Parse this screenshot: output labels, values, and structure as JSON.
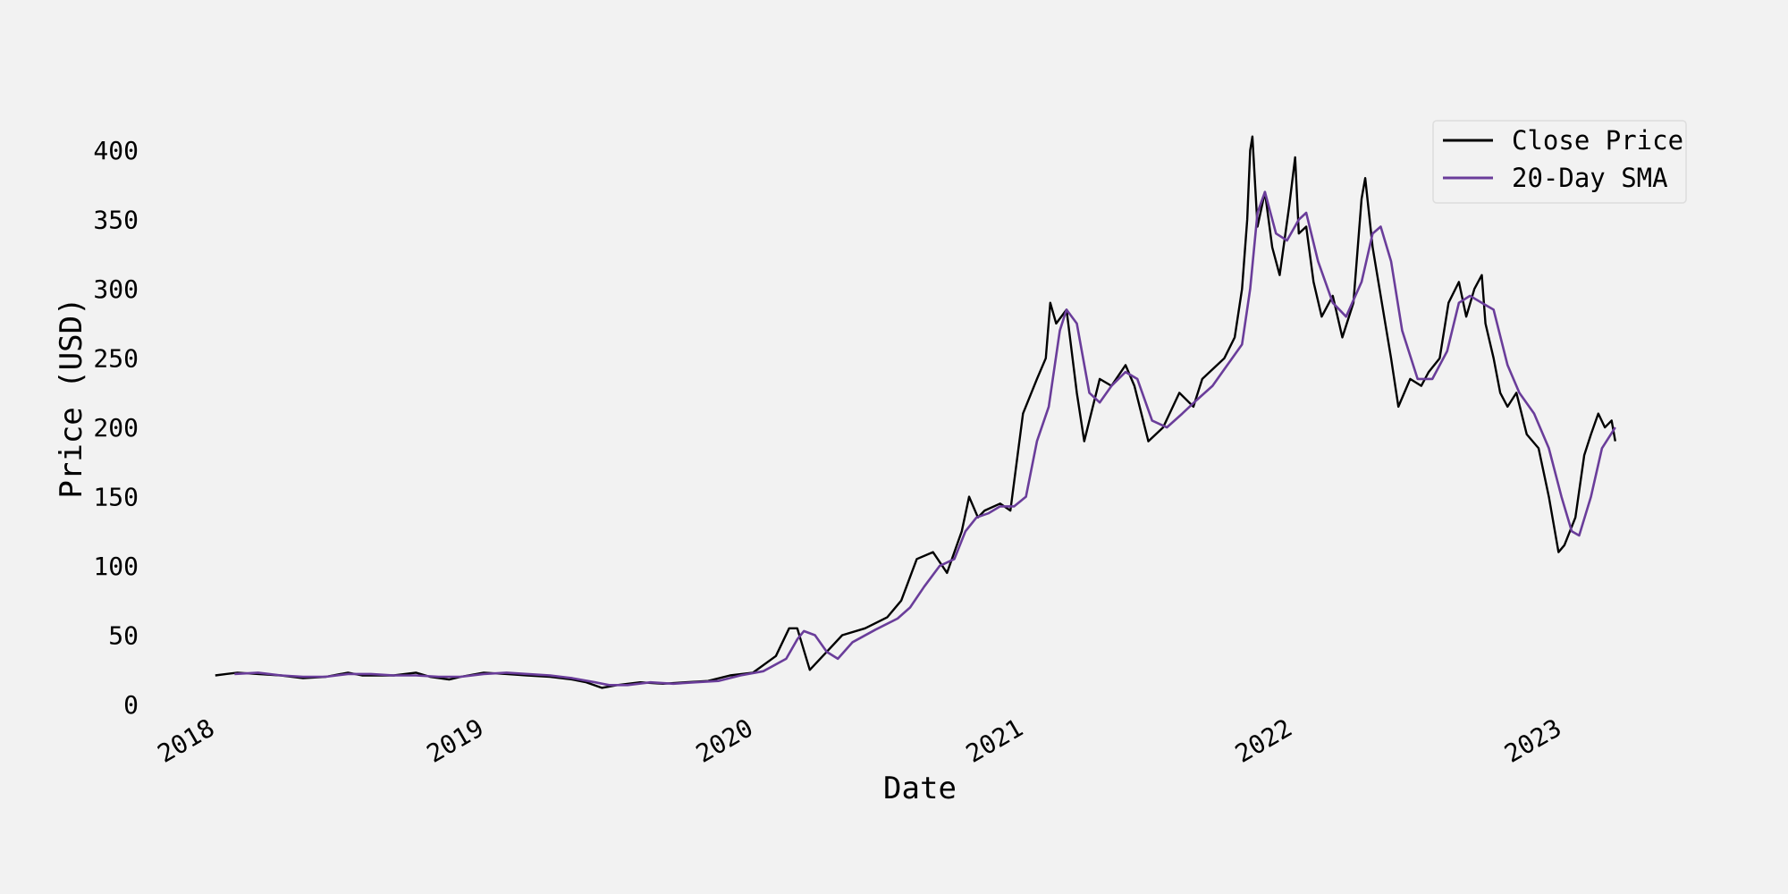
{
  "chart_data": {
    "type": "line",
    "title": "",
    "xlabel": "Date",
    "ylabel": "Price (USD)",
    "x_ticks": [
      "2018",
      "2019",
      "2020",
      "2021",
      "2022",
      "2023"
    ],
    "y_ticks": [
      0,
      50,
      100,
      150,
      200,
      250,
      300,
      350,
      400
    ],
    "xlim": [
      "2018-01-01",
      "2023-03-31"
    ],
    "ylim": [
      0,
      415
    ],
    "grid": false,
    "legend_position": "top-right",
    "series": [
      {
        "name": "Close Price",
        "color": "#000000",
        "points": [
          [
            "2018-01-02",
            21
          ],
          [
            "2018-02-01",
            23
          ],
          [
            "2018-03-01",
            22
          ],
          [
            "2018-04-01",
            21
          ],
          [
            "2018-05-01",
            19
          ],
          [
            "2018-06-01",
            20
          ],
          [
            "2018-07-01",
            23
          ],
          [
            "2018-07-20",
            21
          ],
          [
            "2018-08-01",
            21
          ],
          [
            "2018-09-01",
            21
          ],
          [
            "2018-10-01",
            23
          ],
          [
            "2018-10-20",
            20
          ],
          [
            "2018-11-15",
            18
          ],
          [
            "2018-12-01",
            20
          ],
          [
            "2019-01-01",
            23
          ],
          [
            "2019-02-01",
            22
          ],
          [
            "2019-03-01",
            21
          ],
          [
            "2019-04-01",
            20
          ],
          [
            "2019-05-01",
            18
          ],
          [
            "2019-05-20",
            16
          ],
          [
            "2019-06-10",
            12
          ],
          [
            "2019-07-01",
            14
          ],
          [
            "2019-08-01",
            16
          ],
          [
            "2019-09-01",
            15
          ],
          [
            "2019-10-01",
            16
          ],
          [
            "2019-11-01",
            17
          ],
          [
            "2019-12-01",
            21
          ],
          [
            "2020-01-01",
            23
          ],
          [
            "2020-02-01",
            35
          ],
          [
            "2020-02-19",
            55
          ],
          [
            "2020-03-01",
            55
          ],
          [
            "2020-03-18",
            25
          ],
          [
            "2020-04-10",
            38
          ],
          [
            "2020-05-01",
            50
          ],
          [
            "2020-06-01",
            55
          ],
          [
            "2020-07-01",
            63
          ],
          [
            "2020-07-20",
            75
          ],
          [
            "2020-08-10",
            105
          ],
          [
            "2020-09-01",
            110
          ],
          [
            "2020-09-20",
            95
          ],
          [
            "2020-10-10",
            125
          ],
          [
            "2020-10-20",
            150
          ],
          [
            "2020-11-01",
            135
          ],
          [
            "2020-11-10",
            140
          ],
          [
            "2020-12-01",
            145
          ],
          [
            "2020-12-15",
            140
          ],
          [
            "2021-01-01",
            210
          ],
          [
            "2021-01-20",
            235
          ],
          [
            "2021-02-01",
            250
          ],
          [
            "2021-02-07",
            290
          ],
          [
            "2021-02-15",
            275
          ],
          [
            "2021-03-01",
            285
          ],
          [
            "2021-03-15",
            225
          ],
          [
            "2021-03-25",
            190
          ],
          [
            "2021-04-15",
            235
          ],
          [
            "2021-05-01",
            230
          ],
          [
            "2021-05-20",
            245
          ],
          [
            "2021-06-01",
            230
          ],
          [
            "2021-06-20",
            190
          ],
          [
            "2021-07-10",
            200
          ],
          [
            "2021-08-01",
            225
          ],
          [
            "2021-08-20",
            215
          ],
          [
            "2021-09-01",
            235
          ],
          [
            "2021-10-01",
            250
          ],
          [
            "2021-10-15",
            265
          ],
          [
            "2021-10-25",
            300
          ],
          [
            "2021-11-01",
            350
          ],
          [
            "2021-11-05",
            400
          ],
          [
            "2021-11-08",
            410
          ],
          [
            "2021-11-15",
            345
          ],
          [
            "2021-11-25",
            370
          ],
          [
            "2021-12-05",
            330
          ],
          [
            "2021-12-15",
            310
          ],
          [
            "2021-12-28",
            360
          ],
          [
            "2022-01-05",
            395
          ],
          [
            "2022-01-10",
            340
          ],
          [
            "2022-01-20",
            345
          ],
          [
            "2022-01-30",
            305
          ],
          [
            "2022-02-10",
            280
          ],
          [
            "2022-02-25",
            295
          ],
          [
            "2022-03-10",
            265
          ],
          [
            "2022-03-25",
            290
          ],
          [
            "2022-04-05",
            365
          ],
          [
            "2022-04-10",
            380
          ],
          [
            "2022-04-20",
            330
          ],
          [
            "2022-05-01",
            295
          ],
          [
            "2022-05-15",
            250
          ],
          [
            "2022-05-25",
            215
          ],
          [
            "2022-06-10",
            235
          ],
          [
            "2022-06-25",
            230
          ],
          [
            "2022-07-05",
            240
          ],
          [
            "2022-07-20",
            250
          ],
          [
            "2022-08-01",
            290
          ],
          [
            "2022-08-15",
            305
          ],
          [
            "2022-08-25",
            280
          ],
          [
            "2022-09-05",
            300
          ],
          [
            "2022-09-15",
            310
          ],
          [
            "2022-09-20",
            275
          ],
          [
            "2022-10-01",
            250
          ],
          [
            "2022-10-10",
            225
          ],
          [
            "2022-10-20",
            215
          ],
          [
            "2022-11-01",
            225
          ],
          [
            "2022-11-15",
            195
          ],
          [
            "2022-12-01",
            185
          ],
          [
            "2022-12-15",
            150
          ],
          [
            "2022-12-28",
            110
          ],
          [
            "2023-01-05",
            115
          ],
          [
            "2023-01-20",
            135
          ],
          [
            "2023-02-01",
            180
          ],
          [
            "2023-02-10",
            195
          ],
          [
            "2023-02-20",
            210
          ],
          [
            "2023-03-01",
            200
          ],
          [
            "2023-03-10",
            205
          ],
          [
            "2023-03-15",
            190
          ]
        ]
      },
      {
        "name": "20-Day SMA",
        "color": "#6a3d9a",
        "points": [
          [
            "2018-01-28",
            22
          ],
          [
            "2018-03-01",
            23
          ],
          [
            "2018-04-01",
            21
          ],
          [
            "2018-05-01",
            20
          ],
          [
            "2018-06-01",
            20
          ],
          [
            "2018-07-01",
            22
          ],
          [
            "2018-08-01",
            22
          ],
          [
            "2018-09-01",
            21
          ],
          [
            "2018-10-01",
            21
          ],
          [
            "2018-11-01",
            20
          ],
          [
            "2018-12-01",
            20
          ],
          [
            "2019-01-01",
            22
          ],
          [
            "2019-02-01",
            23
          ],
          [
            "2019-03-01",
            22
          ],
          [
            "2019-04-01",
            21
          ],
          [
            "2019-05-01",
            19
          ],
          [
            "2019-06-01",
            16
          ],
          [
            "2019-06-20",
            14
          ],
          [
            "2019-07-15",
            14
          ],
          [
            "2019-08-15",
            16
          ],
          [
            "2019-09-15",
            15
          ],
          [
            "2019-10-15",
            16
          ],
          [
            "2019-11-15",
            17
          ],
          [
            "2019-12-15",
            21
          ],
          [
            "2020-01-15",
            24
          ],
          [
            "2020-02-15",
            33
          ],
          [
            "2020-03-01",
            47
          ],
          [
            "2020-03-10",
            53
          ],
          [
            "2020-03-25",
            50
          ],
          [
            "2020-04-10",
            38
          ],
          [
            "2020-04-25",
            33
          ],
          [
            "2020-05-15",
            45
          ],
          [
            "2020-06-15",
            54
          ],
          [
            "2020-07-15",
            62
          ],
          [
            "2020-08-01",
            70
          ],
          [
            "2020-08-20",
            85
          ],
          [
            "2020-09-10",
            100
          ],
          [
            "2020-09-30",
            105
          ],
          [
            "2020-10-15",
            125
          ],
          [
            "2020-10-30",
            135
          ],
          [
            "2020-11-15",
            138
          ],
          [
            "2020-12-01",
            143
          ],
          [
            "2020-12-20",
            143
          ],
          [
            "2021-01-05",
            150
          ],
          [
            "2021-01-20",
            190
          ],
          [
            "2021-02-05",
            215
          ],
          [
            "2021-02-20",
            270
          ],
          [
            "2021-03-01",
            285
          ],
          [
            "2021-03-15",
            275
          ],
          [
            "2021-04-01",
            225
          ],
          [
            "2021-04-15",
            218
          ],
          [
            "2021-05-01",
            230
          ],
          [
            "2021-05-20",
            240
          ],
          [
            "2021-06-05",
            235
          ],
          [
            "2021-06-25",
            205
          ],
          [
            "2021-07-15",
            200
          ],
          [
            "2021-08-05",
            210
          ],
          [
            "2021-08-25",
            220
          ],
          [
            "2021-09-15",
            230
          ],
          [
            "2021-10-05",
            245
          ],
          [
            "2021-10-25",
            260
          ],
          [
            "2021-11-05",
            300
          ],
          [
            "2021-11-15",
            355
          ],
          [
            "2021-11-25",
            370
          ],
          [
            "2021-12-10",
            340
          ],
          [
            "2021-12-25",
            335
          ],
          [
            "2022-01-10",
            350
          ],
          [
            "2022-01-20",
            355
          ],
          [
            "2022-02-05",
            320
          ],
          [
            "2022-02-25",
            290
          ],
          [
            "2022-03-15",
            280
          ],
          [
            "2022-04-05",
            305
          ],
          [
            "2022-04-20",
            340
          ],
          [
            "2022-05-01",
            345
          ],
          [
            "2022-05-15",
            320
          ],
          [
            "2022-05-30",
            270
          ],
          [
            "2022-06-20",
            235
          ],
          [
            "2022-07-10",
            235
          ],
          [
            "2022-07-30",
            255
          ],
          [
            "2022-08-15",
            290
          ],
          [
            "2022-08-30",
            295
          ],
          [
            "2022-09-15",
            290
          ],
          [
            "2022-10-01",
            285
          ],
          [
            "2022-10-20",
            245
          ],
          [
            "2022-11-05",
            225
          ],
          [
            "2022-11-25",
            210
          ],
          [
            "2022-12-15",
            185
          ],
          [
            "2023-01-01",
            150
          ],
          [
            "2023-01-15",
            125
          ],
          [
            "2023-01-25",
            122
          ],
          [
            "2023-02-10",
            150
          ],
          [
            "2023-02-25",
            185
          ],
          [
            "2023-03-15",
            200
          ]
        ]
      }
    ]
  }
}
